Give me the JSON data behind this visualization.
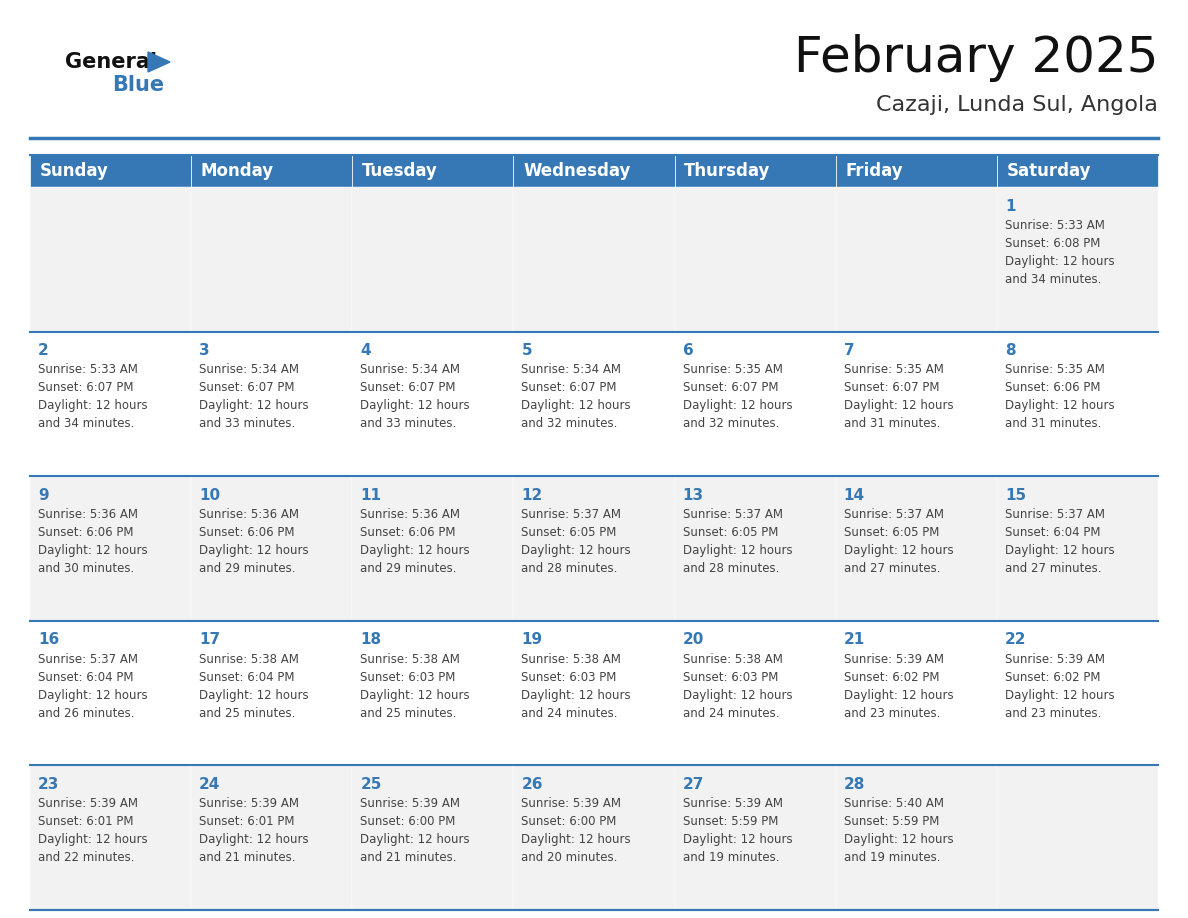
{
  "title": "February 2025",
  "subtitle": "Cazaji, Lunda Sul, Angola",
  "header_color": "#3578b5",
  "header_text_color": "#ffffff",
  "cell_bg_light": "#f2f2f2",
  "cell_bg_white": "#ffffff",
  "day_text_color": "#3578b5",
  "info_text_color": "#444444",
  "border_color": "#3578b5",
  "days_of_week": [
    "Sunday",
    "Monday",
    "Tuesday",
    "Wednesday",
    "Thursday",
    "Friday",
    "Saturday"
  ],
  "weeks": [
    [
      {
        "day": null,
        "info": null
      },
      {
        "day": null,
        "info": null
      },
      {
        "day": null,
        "info": null
      },
      {
        "day": null,
        "info": null
      },
      {
        "day": null,
        "info": null
      },
      {
        "day": null,
        "info": null
      },
      {
        "day": 1,
        "info": "Sunrise: 5:33 AM\nSunset: 6:08 PM\nDaylight: 12 hours\nand 34 minutes."
      }
    ],
    [
      {
        "day": 2,
        "info": "Sunrise: 5:33 AM\nSunset: 6:07 PM\nDaylight: 12 hours\nand 34 minutes."
      },
      {
        "day": 3,
        "info": "Sunrise: 5:34 AM\nSunset: 6:07 PM\nDaylight: 12 hours\nand 33 minutes."
      },
      {
        "day": 4,
        "info": "Sunrise: 5:34 AM\nSunset: 6:07 PM\nDaylight: 12 hours\nand 33 minutes."
      },
      {
        "day": 5,
        "info": "Sunrise: 5:34 AM\nSunset: 6:07 PM\nDaylight: 12 hours\nand 32 minutes."
      },
      {
        "day": 6,
        "info": "Sunrise: 5:35 AM\nSunset: 6:07 PM\nDaylight: 12 hours\nand 32 minutes."
      },
      {
        "day": 7,
        "info": "Sunrise: 5:35 AM\nSunset: 6:07 PM\nDaylight: 12 hours\nand 31 minutes."
      },
      {
        "day": 8,
        "info": "Sunrise: 5:35 AM\nSunset: 6:06 PM\nDaylight: 12 hours\nand 31 minutes."
      }
    ],
    [
      {
        "day": 9,
        "info": "Sunrise: 5:36 AM\nSunset: 6:06 PM\nDaylight: 12 hours\nand 30 minutes."
      },
      {
        "day": 10,
        "info": "Sunrise: 5:36 AM\nSunset: 6:06 PM\nDaylight: 12 hours\nand 29 minutes."
      },
      {
        "day": 11,
        "info": "Sunrise: 5:36 AM\nSunset: 6:06 PM\nDaylight: 12 hours\nand 29 minutes."
      },
      {
        "day": 12,
        "info": "Sunrise: 5:37 AM\nSunset: 6:05 PM\nDaylight: 12 hours\nand 28 minutes."
      },
      {
        "day": 13,
        "info": "Sunrise: 5:37 AM\nSunset: 6:05 PM\nDaylight: 12 hours\nand 28 minutes."
      },
      {
        "day": 14,
        "info": "Sunrise: 5:37 AM\nSunset: 6:05 PM\nDaylight: 12 hours\nand 27 minutes."
      },
      {
        "day": 15,
        "info": "Sunrise: 5:37 AM\nSunset: 6:04 PM\nDaylight: 12 hours\nand 27 minutes."
      }
    ],
    [
      {
        "day": 16,
        "info": "Sunrise: 5:37 AM\nSunset: 6:04 PM\nDaylight: 12 hours\nand 26 minutes."
      },
      {
        "day": 17,
        "info": "Sunrise: 5:38 AM\nSunset: 6:04 PM\nDaylight: 12 hours\nand 25 minutes."
      },
      {
        "day": 18,
        "info": "Sunrise: 5:38 AM\nSunset: 6:03 PM\nDaylight: 12 hours\nand 25 minutes."
      },
      {
        "day": 19,
        "info": "Sunrise: 5:38 AM\nSunset: 6:03 PM\nDaylight: 12 hours\nand 24 minutes."
      },
      {
        "day": 20,
        "info": "Sunrise: 5:38 AM\nSunset: 6:03 PM\nDaylight: 12 hours\nand 24 minutes."
      },
      {
        "day": 21,
        "info": "Sunrise: 5:39 AM\nSunset: 6:02 PM\nDaylight: 12 hours\nand 23 minutes."
      },
      {
        "day": 22,
        "info": "Sunrise: 5:39 AM\nSunset: 6:02 PM\nDaylight: 12 hours\nand 23 minutes."
      }
    ],
    [
      {
        "day": 23,
        "info": "Sunrise: 5:39 AM\nSunset: 6:01 PM\nDaylight: 12 hours\nand 22 minutes."
      },
      {
        "day": 24,
        "info": "Sunrise: 5:39 AM\nSunset: 6:01 PM\nDaylight: 12 hours\nand 21 minutes."
      },
      {
        "day": 25,
        "info": "Sunrise: 5:39 AM\nSunset: 6:00 PM\nDaylight: 12 hours\nand 21 minutes."
      },
      {
        "day": 26,
        "info": "Sunrise: 5:39 AM\nSunset: 6:00 PM\nDaylight: 12 hours\nand 20 minutes."
      },
      {
        "day": 27,
        "info": "Sunrise: 5:39 AM\nSunset: 5:59 PM\nDaylight: 12 hours\nand 19 minutes."
      },
      {
        "day": 28,
        "info": "Sunrise: 5:40 AM\nSunset: 5:59 PM\nDaylight: 12 hours\nand 19 minutes."
      },
      {
        "day": null,
        "info": null
      }
    ]
  ],
  "logo_general_color": "#111111",
  "logo_blue_color": "#3578b5",
  "title_fontsize": 36,
  "subtitle_fontsize": 16,
  "header_fontsize": 12,
  "day_num_fontsize": 11,
  "info_fontsize": 8.5
}
